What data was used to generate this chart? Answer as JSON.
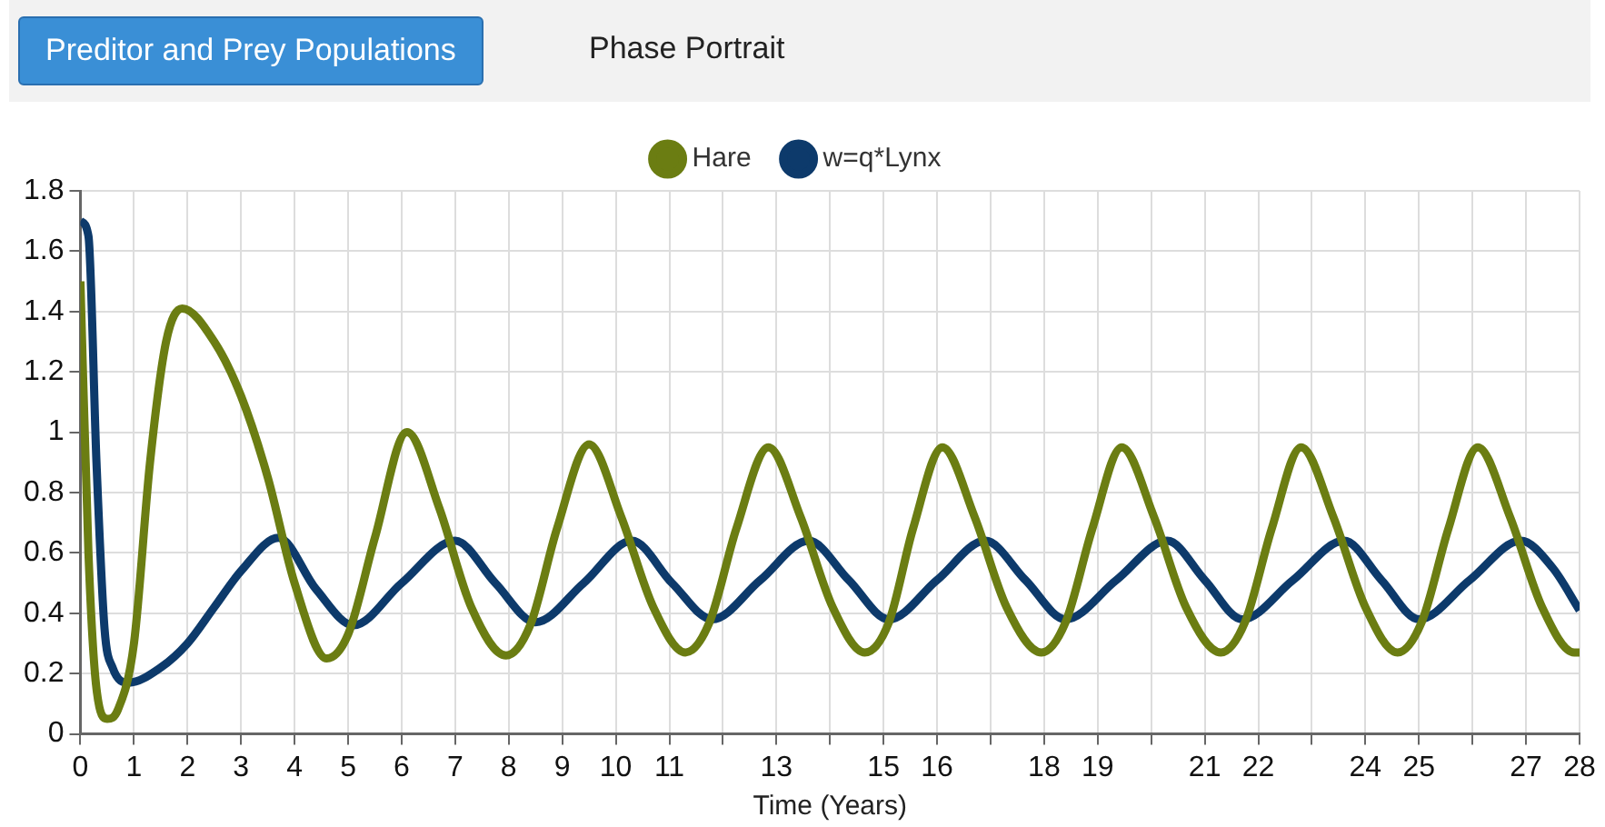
{
  "chart_data": {
    "type": "line",
    "annotations": [
      "Preditor and Prey Populations",
      "Phase Portrait"
    ],
    "xlabel": "Time (Years)",
    "xlim": [
      0,
      28
    ],
    "xticks": [
      0,
      1,
      2,
      3,
      4,
      5,
      6,
      7,
      8,
      9,
      10,
      11,
      {
        "value": 12,
        "label": null
      },
      13,
      {
        "value": 14,
        "label": null
      },
      15,
      16,
      {
        "value": 17,
        "label": null
      },
      18,
      19,
      {
        "value": 20,
        "label": null
      },
      21,
      22,
      {
        "value": 23,
        "label": null
      },
      24,
      25,
      {
        "value": 26,
        "label": null
      },
      27,
      28
    ],
    "ylim": [
      0,
      1.8
    ],
    "yticks": [
      0,
      0.2,
      0.4,
      0.6,
      0.8,
      1,
      1.2,
      1.4,
      1.6,
      1.8
    ],
    "grid": true,
    "legend": "top",
    "marker": "none",
    "line_style": "solid",
    "series": [
      {
        "name": "Hare",
        "color": "#6b7d12",
        "x": [
          0,
          0.15,
          0.3,
          0.5,
          0.7,
          1.0,
          1.3,
          1.6,
          1.9,
          2.5,
          3.0,
          3.5,
          4.0,
          4.6,
          5.0,
          5.5,
          6.1,
          6.7,
          7.3,
          7.95,
          8.4,
          8.9,
          9.5,
          10.1,
          10.7,
          11.3,
          11.75,
          12.25,
          12.85,
          13.45,
          14.05,
          14.65,
          15.1,
          15.55,
          16.1,
          16.7,
          17.3,
          17.95,
          18.4,
          18.9,
          19.45,
          20.05,
          20.65,
          21.3,
          21.75,
          22.25,
          22.8,
          23.4,
          24.0,
          24.6,
          25.05,
          25.55,
          26.1,
          26.7,
          27.3,
          27.9,
          28
        ],
        "values": [
          1.5,
          0.6,
          0.15,
          0.05,
          0.08,
          0.3,
          0.9,
          1.3,
          1.41,
          1.3,
          1.12,
          0.85,
          0.5,
          0.25,
          0.33,
          0.65,
          1.0,
          0.75,
          0.42,
          0.26,
          0.36,
          0.68,
          0.96,
          0.72,
          0.42,
          0.27,
          0.37,
          0.68,
          0.95,
          0.72,
          0.42,
          0.27,
          0.37,
          0.68,
          0.95,
          0.72,
          0.42,
          0.27,
          0.37,
          0.68,
          0.95,
          0.72,
          0.42,
          0.27,
          0.37,
          0.68,
          0.95,
          0.72,
          0.42,
          0.27,
          0.37,
          0.68,
          0.95,
          0.72,
          0.42,
          0.27,
          0.27
        ]
      },
      {
        "name": "w=q*Lynx",
        "color": "#0d3a6b",
        "x": [
          0,
          0.15,
          0.3,
          0.45,
          0.6,
          0.9,
          1.5,
          2.0,
          2.5,
          3.0,
          3.7,
          4.4,
          5.1,
          6.0,
          7.0,
          7.75,
          8.5,
          9.4,
          10.3,
          11.05,
          11.8,
          12.7,
          13.6,
          14.35,
          15.1,
          16.0,
          16.9,
          17.65,
          18.4,
          19.35,
          20.3,
          21.0,
          21.7,
          22.65,
          23.6,
          24.3,
          25.0,
          25.95,
          26.9,
          27.5,
          28
        ],
        "values": [
          1.7,
          1.65,
          0.9,
          0.35,
          0.22,
          0.17,
          0.22,
          0.3,
          0.42,
          0.54,
          0.65,
          0.48,
          0.36,
          0.5,
          0.64,
          0.5,
          0.37,
          0.5,
          0.64,
          0.5,
          0.38,
          0.51,
          0.64,
          0.51,
          0.38,
          0.51,
          0.64,
          0.51,
          0.38,
          0.51,
          0.64,
          0.51,
          0.38,
          0.51,
          0.64,
          0.51,
          0.38,
          0.51,
          0.64,
          0.55,
          0.41
        ]
      }
    ]
  }
}
